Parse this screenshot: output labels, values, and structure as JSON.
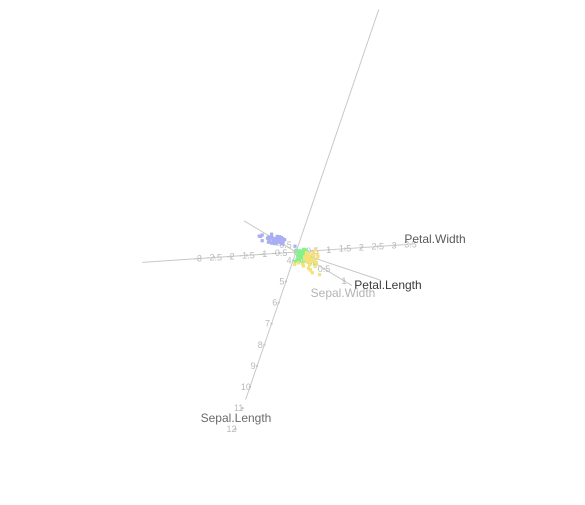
{
  "chart_data": {
    "type": "scatter",
    "projection": "3d",
    "title": "",
    "axes": [
      {
        "name": "Sepal.Length",
        "ticks": [
          "4",
          "5",
          "6",
          "7",
          "8",
          "9",
          "10",
          "11",
          "12"
        ],
        "color": "#6b6b6b"
      },
      {
        "name": "Petal.Width",
        "ticks": [
          "-3",
          "-2.5",
          "-2",
          "-1.5",
          "-1",
          "-0.5",
          "0",
          "0.5",
          "1",
          "1.5",
          "2",
          "2.5",
          "3",
          "3.5"
        ],
        "color": "#5a5a5a"
      },
      {
        "name": "Petal.Length",
        "ticks": [],
        "color": "#3a3a3a"
      },
      {
        "name": "Sepal.Width",
        "ticks": [
          "-0.5",
          "0",
          "0.5",
          "1"
        ],
        "color": "#b4b4b4"
      }
    ],
    "series": [
      {
        "color": "#a9aff2",
        "points": [
          [
            4.6,
            3.1,
            1.5,
            0.2
          ],
          [
            5.0,
            3.4,
            1.4,
            0.2
          ],
          [
            4.9,
            3.0,
            1.4,
            0.2
          ],
          [
            4.7,
            3.2,
            1.3,
            0.2
          ],
          [
            5.1,
            3.5,
            1.4,
            0.2
          ],
          [
            5.4,
            3.9,
            1.7,
            0.4
          ],
          [
            4.6,
            3.4,
            1.4,
            0.3
          ],
          [
            5.0,
            3.4,
            1.5,
            0.2
          ],
          [
            4.4,
            2.9,
            1.4,
            0.2
          ],
          [
            4.9,
            3.1,
            1.5,
            0.1
          ],
          [
            5.4,
            3.7,
            1.5,
            0.2
          ],
          [
            4.8,
            3.4,
            1.6,
            0.2
          ],
          [
            4.8,
            3.0,
            1.4,
            0.1
          ],
          [
            4.3,
            3.0,
            1.1,
            0.1
          ],
          [
            5.8,
            4.0,
            1.2,
            0.2
          ],
          [
            5.7,
            4.4,
            1.5,
            0.4
          ],
          [
            5.4,
            3.9,
            1.3,
            0.4
          ],
          [
            5.1,
            3.5,
            1.4,
            0.3
          ],
          [
            5.7,
            3.8,
            1.7,
            0.3
          ],
          [
            5.1,
            3.8,
            1.5,
            0.3
          ],
          [
            5.4,
            3.4,
            1.7,
            0.2
          ],
          [
            5.1,
            3.7,
            1.5,
            0.4
          ],
          [
            4.6,
            3.6,
            1.0,
            0.2
          ],
          [
            5.1,
            3.3,
            1.7,
            0.5
          ],
          [
            4.8,
            3.4,
            1.9,
            0.2
          ],
          [
            5.0,
            3.0,
            1.6,
            0.2
          ],
          [
            5.0,
            3.4,
            1.6,
            0.4
          ],
          [
            5.2,
            3.5,
            1.5,
            0.2
          ],
          [
            5.2,
            3.4,
            1.4,
            0.2
          ],
          [
            4.7,
            3.2,
            1.6,
            0.2
          ],
          [
            4.8,
            3.1,
            1.6,
            0.2
          ],
          [
            5.4,
            3.4,
            1.5,
            0.4
          ],
          [
            5.2,
            4.1,
            1.5,
            0.1
          ],
          [
            5.5,
            4.2,
            1.4,
            0.2
          ],
          [
            4.9,
            3.1,
            1.5,
            0.2
          ],
          [
            5.0,
            3.2,
            1.2,
            0.2
          ],
          [
            5.5,
            3.5,
            1.3,
            0.2
          ],
          [
            4.4,
            3.0,
            1.3,
            0.2
          ],
          [
            5.1,
            3.4,
            1.5,
            0.2
          ],
          [
            5.0,
            3.5,
            1.3,
            0.3
          ],
          [
            4.5,
            2.3,
            1.3,
            0.3
          ],
          [
            4.4,
            3.2,
            1.3,
            0.2
          ],
          [
            5.0,
            3.5,
            1.6,
            0.6
          ],
          [
            5.1,
            3.8,
            1.9,
            0.4
          ],
          [
            4.8,
            3.0,
            1.4,
            0.3
          ],
          [
            5.1,
            3.8,
            1.6,
            0.2
          ],
          [
            4.6,
            3.2,
            1.4,
            0.2
          ],
          [
            5.3,
            3.7,
            1.5,
            0.2
          ],
          [
            5.0,
            3.3,
            1.4,
            0.2
          ]
        ]
      },
      {
        "color": "#86f08e",
        "points": [
          [
            7.0,
            3.2,
            4.7,
            1.4
          ],
          [
            6.4,
            3.2,
            4.5,
            1.5
          ],
          [
            6.9,
            3.1,
            4.9,
            1.5
          ],
          [
            5.5,
            2.3,
            4.0,
            1.3
          ],
          [
            6.5,
            2.8,
            4.6,
            1.5
          ],
          [
            5.7,
            2.8,
            4.5,
            1.3
          ],
          [
            6.3,
            3.3,
            4.7,
            1.6
          ],
          [
            4.9,
            2.4,
            3.3,
            1.0
          ],
          [
            6.6,
            2.9,
            4.6,
            1.3
          ],
          [
            5.2,
            2.7,
            3.9,
            1.4
          ],
          [
            5.0,
            2.0,
            3.5,
            1.0
          ],
          [
            5.9,
            3.0,
            4.2,
            1.5
          ],
          [
            6.0,
            2.2,
            4.0,
            1.0
          ],
          [
            6.1,
            2.9,
            4.7,
            1.4
          ],
          [
            5.6,
            2.9,
            3.6,
            1.3
          ],
          [
            6.7,
            3.1,
            4.4,
            1.4
          ],
          [
            5.6,
            3.0,
            4.5,
            1.5
          ],
          [
            5.8,
            2.7,
            4.1,
            1.0
          ],
          [
            6.2,
            2.2,
            4.5,
            1.5
          ],
          [
            5.6,
            2.5,
            3.9,
            1.1
          ],
          [
            5.9,
            3.2,
            4.8,
            1.8
          ],
          [
            6.1,
            2.8,
            4.0,
            1.3
          ],
          [
            6.3,
            2.5,
            4.9,
            1.5
          ],
          [
            6.1,
            2.8,
            4.7,
            1.2
          ],
          [
            6.4,
            2.9,
            4.3,
            1.3
          ],
          [
            6.6,
            3.0,
            4.4,
            1.4
          ],
          [
            6.8,
            2.8,
            4.8,
            1.4
          ],
          [
            6.7,
            3.0,
            5.0,
            1.7
          ],
          [
            6.0,
            2.9,
            4.5,
            1.5
          ],
          [
            5.7,
            2.6,
            3.5,
            1.0
          ],
          [
            5.5,
            2.4,
            3.8,
            1.1
          ],
          [
            5.5,
            2.4,
            3.7,
            1.0
          ],
          [
            5.8,
            2.7,
            3.9,
            1.2
          ],
          [
            6.0,
            2.7,
            5.1,
            1.6
          ],
          [
            5.4,
            3.0,
            4.5,
            1.5
          ],
          [
            6.0,
            3.4,
            4.5,
            1.6
          ],
          [
            6.7,
            3.1,
            4.7,
            1.5
          ],
          [
            6.3,
            2.3,
            4.4,
            1.3
          ],
          [
            5.6,
            3.0,
            4.1,
            1.3
          ],
          [
            5.5,
            2.5,
            4.0,
            1.3
          ],
          [
            5.5,
            2.6,
            4.4,
            1.2
          ],
          [
            6.1,
            3.0,
            4.6,
            1.4
          ],
          [
            5.8,
            2.6,
            4.0,
            1.2
          ],
          [
            5.0,
            2.3,
            3.3,
            1.0
          ],
          [
            5.6,
            2.7,
            4.2,
            1.3
          ],
          [
            5.7,
            3.0,
            4.2,
            1.2
          ],
          [
            5.7,
            2.9,
            4.2,
            1.3
          ],
          [
            6.2,
            2.9,
            4.3,
            1.3
          ],
          [
            5.1,
            2.5,
            3.0,
            1.1
          ],
          [
            5.7,
            2.8,
            4.1,
            1.3
          ]
        ]
      },
      {
        "color": "#f5e07a",
        "points": [
          [
            6.3,
            3.3,
            6.0,
            2.5
          ],
          [
            5.8,
            2.7,
            5.1,
            1.9
          ],
          [
            7.1,
            3.0,
            5.9,
            2.1
          ],
          [
            6.3,
            2.9,
            5.6,
            1.8
          ],
          [
            6.5,
            3.0,
            5.8,
            2.2
          ],
          [
            7.6,
            3.0,
            6.6,
            2.1
          ],
          [
            4.9,
            2.5,
            4.5,
            1.7
          ],
          [
            7.3,
            2.9,
            6.3,
            1.8
          ],
          [
            6.7,
            2.5,
            5.8,
            1.8
          ],
          [
            7.2,
            3.6,
            6.1,
            2.5
          ],
          [
            6.5,
            3.2,
            5.1,
            2.0
          ],
          [
            6.4,
            2.7,
            5.3,
            1.9
          ],
          [
            6.8,
            3.0,
            5.5,
            2.1
          ],
          [
            5.7,
            2.5,
            5.0,
            2.0
          ],
          [
            5.8,
            2.8,
            5.1,
            2.4
          ],
          [
            6.4,
            3.2,
            5.3,
            2.3
          ],
          [
            6.5,
            3.0,
            5.5,
            1.8
          ],
          [
            7.7,
            3.8,
            6.7,
            2.2
          ],
          [
            7.7,
            2.6,
            6.9,
            2.3
          ],
          [
            6.0,
            2.2,
            5.0,
            1.5
          ],
          [
            6.9,
            3.2,
            5.7,
            2.3
          ],
          [
            5.6,
            2.8,
            4.9,
            2.0
          ],
          [
            7.7,
            2.8,
            6.7,
            2.0
          ],
          [
            6.3,
            2.7,
            4.9,
            1.8
          ],
          [
            6.7,
            3.3,
            5.7,
            2.1
          ],
          [
            7.2,
            3.2,
            6.0,
            1.8
          ],
          [
            6.2,
            2.8,
            4.8,
            1.8
          ],
          [
            6.1,
            3.0,
            4.9,
            1.8
          ],
          [
            6.4,
            2.8,
            5.6,
            2.1
          ],
          [
            7.2,
            3.0,
            5.8,
            1.6
          ],
          [
            7.4,
            2.8,
            6.1,
            1.9
          ],
          [
            7.9,
            3.8,
            6.4,
            2.0
          ],
          [
            6.4,
            2.8,
            5.6,
            2.2
          ],
          [
            6.3,
            2.8,
            5.1,
            1.5
          ],
          [
            6.1,
            2.6,
            5.6,
            1.4
          ],
          [
            7.7,
            3.0,
            6.1,
            2.3
          ],
          [
            6.3,
            3.4,
            5.6,
            2.4
          ],
          [
            6.4,
            3.1,
            5.5,
            1.8
          ],
          [
            6.0,
            3.0,
            4.8,
            1.8
          ],
          [
            6.9,
            3.1,
            5.4,
            2.1
          ],
          [
            6.7,
            3.1,
            5.6,
            2.4
          ],
          [
            6.9,
            3.1,
            5.1,
            2.3
          ],
          [
            5.8,
            2.7,
            5.1,
            1.9
          ],
          [
            6.8,
            3.2,
            5.9,
            2.3
          ],
          [
            6.7,
            3.3,
            5.7,
            2.5
          ],
          [
            6.7,
            3.0,
            5.2,
            2.3
          ],
          [
            6.3,
            2.5,
            5.0,
            1.9
          ],
          [
            6.5,
            3.0,
            5.2,
            2.0
          ],
          [
            6.2,
            3.4,
            5.4,
            2.3
          ],
          [
            5.9,
            3.0,
            5.1,
            1.8
          ]
        ]
      }
    ]
  }
}
